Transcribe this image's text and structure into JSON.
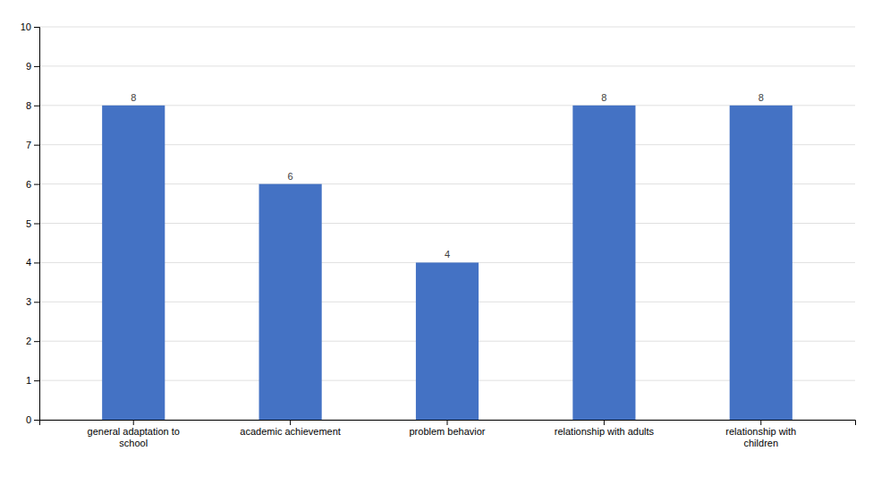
{
  "chart_data": {
    "type": "bar",
    "categories": [
      "general adaptation to\nschool",
      "academic achievement",
      "problem behavior",
      "relationship with adults",
      "relationship with\nchildren"
    ],
    "values": [
      8,
      6,
      4,
      8,
      8
    ],
    "color": "#4472C4",
    "ylim": [
      0,
      10
    ],
    "yticks": [
      0,
      1,
      2,
      3,
      4,
      5,
      6,
      7,
      8,
      9,
      10
    ],
    "grid": true,
    "data_labels": true
  }
}
